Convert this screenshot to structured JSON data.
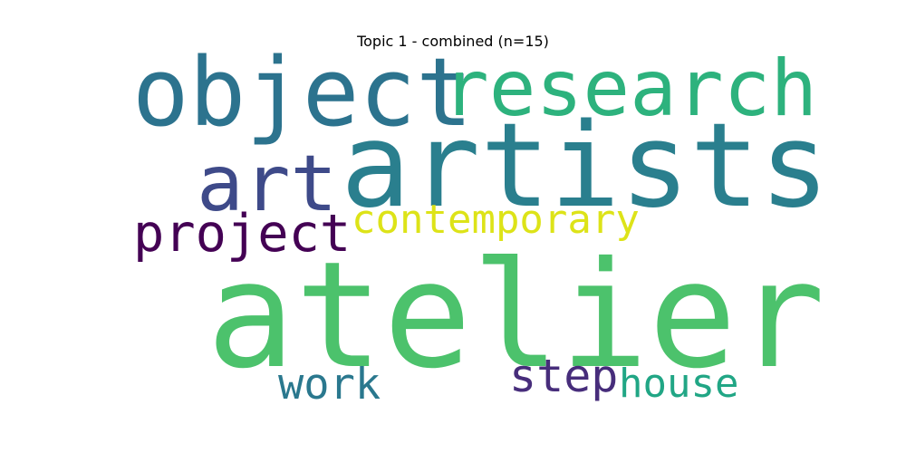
{
  "title": "Topic 1 - combined (n=15)",
  "words": [
    {
      "text": "atelier",
      "color": "#4cc26c"
    },
    {
      "text": "artists",
      "color": "#2a7f8e"
    },
    {
      "text": "object",
      "color": "#2c738e"
    },
    {
      "text": "research",
      "color": "#2db27d"
    },
    {
      "text": "art",
      "color": "#3e4a89"
    },
    {
      "text": "contemporary",
      "color": "#dde318"
    },
    {
      "text": "project",
      "color": "#440154"
    },
    {
      "text": "work",
      "color": "#2a788e"
    },
    {
      "text": "step",
      "color": "#472d7b"
    },
    {
      "text": "house",
      "color": "#21a685"
    }
  ]
}
